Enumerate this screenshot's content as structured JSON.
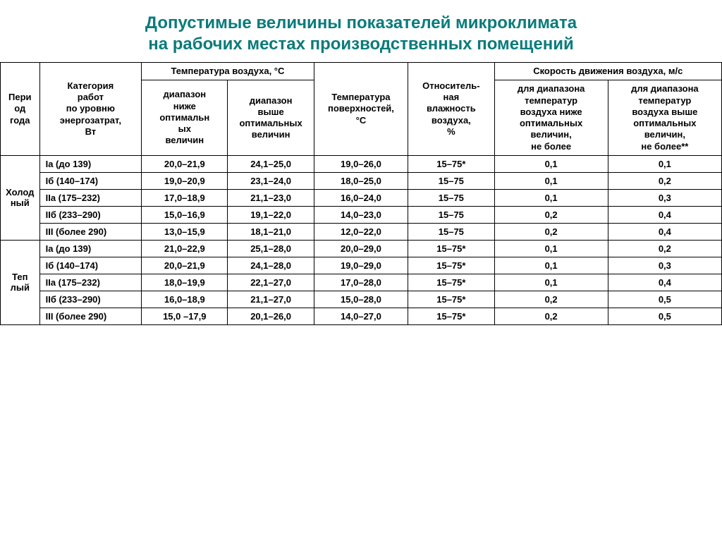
{
  "title_line1": "Допустимые величины показателей микроклимата",
  "title_line2": "на рабочих местах производственных помещений",
  "title_color": "#0a7b7b",
  "headers": {
    "period": "Пери\nод\nгода",
    "category": "Категория\nработ\nпо уровню\nэнергозатрат,\nВт",
    "air_temp_group": "Температура воздуха, °С",
    "temp_below": "диапазон\nниже\nоптимальн\nых\nвеличин",
    "temp_above": "диапазон\nвыше\nоптимальных\nвеличин",
    "surface_temp": "Температура\nповерхностей,\n°С",
    "humidity": "Относитель-\nная\nвлажность\nвоздуха,\n%",
    "air_speed_group": "Скорость движения воздуха, м/с",
    "speed_below": "для диапазона\nтемператур\nвоздуха ниже\nоптимальных\nвеличин,\nне более",
    "speed_above": "для диапазона\nтемператур\nвоздуха выше\nоптимальных\nвеличин,\nне более**"
  },
  "periods": [
    {
      "name": "Холод\nный",
      "rows": [
        {
          "cat": "Iа (до 139)",
          "t1": "20,0–21,9",
          "t2": "24,1–25,0",
          "ts": "19,0–26,0",
          "h": "15–75*",
          "s1": "0,1",
          "s2": "0,1"
        },
        {
          "cat": "Iб (140–174)",
          "t1": "19,0–20,9",
          "t2": "23,1–24,0",
          "ts": "18,0–25,0",
          "h": "15–75",
          "s1": "0,1",
          "s2": "0,2"
        },
        {
          "cat": "IIа (175–232)",
          "t1": "17,0–18,9",
          "t2": "21,1–23,0",
          "ts": "16,0–24,0",
          "h": "15–75",
          "s1": "0,1",
          "s2": "0,3"
        },
        {
          "cat": "IIб (233–290)",
          "t1": "15,0–16,9",
          "t2": "19,1–22,0",
          "ts": "14,0–23,0",
          "h": "15–75",
          "s1": "0,2",
          "s2": "0,4"
        },
        {
          "cat": "III (более 290)",
          "t1": "13,0–15,9",
          "t2": "18,1–21,0",
          "ts": "12,0–22,0",
          "h": "15–75",
          "s1": "0,2",
          "s2": "0,4"
        }
      ]
    },
    {
      "name": "Теп\nлый",
      "rows": [
        {
          "cat": "Iа (до 139)",
          "t1": "21,0–22,9",
          "t2": "25,1–28,0",
          "ts": "20,0–29,0",
          "h": "15–75*",
          "s1": "0,1",
          "s2": "0,2"
        },
        {
          "cat": "Iб (140–174)",
          "t1": "20,0–21,9",
          "t2": "24,1–28,0",
          "ts": "19,0–29,0",
          "h": "15–75*",
          "s1": "0,1",
          "s2": "0,3"
        },
        {
          "cat": "IIа (175–232)",
          "t1": "18,0–19,9",
          "t2": "22,1–27,0",
          "ts": "17,0–28,0",
          "h": "15–75*",
          "s1": "0,1",
          "s2": "0,4"
        },
        {
          "cat": "IIб (233–290)",
          "t1": "16,0–18,9",
          "t2": "21,1–27,0",
          "ts": "15,0–28,0",
          "h": "15–75*",
          "s1": "0,2",
          "s2": "0,5"
        },
        {
          "cat": "III (более 290)",
          "t1": "15,0 –17,9",
          "t2": "20,1–26,0",
          "ts": "14,0–27,0",
          "h": "15–75*",
          "s1": "0,2",
          "s2": "0,5"
        }
      ]
    }
  ]
}
